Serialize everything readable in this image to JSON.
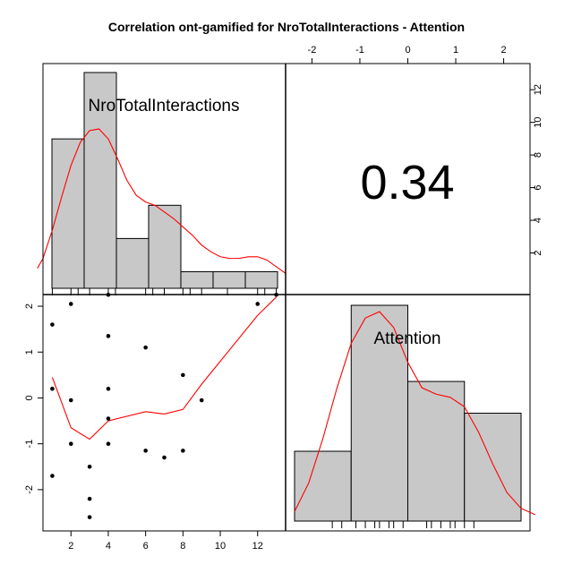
{
  "chart_data": {
    "type": "scatter",
    "title": "Correlation ont-gamified for NroTotalInteractions - Attention",
    "variables": [
      "NroTotalInteractions",
      "Attention"
    ],
    "correlation": {
      "value": 0.34,
      "label": "0.34"
    },
    "histograms": [
      {
        "variable": "NroTotalInteractions",
        "breaks": [
          1,
          2.714,
          4.429,
          6.143,
          7.857,
          9.571,
          11.286,
          13
        ],
        "counts": [
          9,
          13,
          3,
          5,
          1,
          1,
          1
        ],
        "rug": [
          1,
          2,
          3,
          4,
          6,
          7,
          8,
          9,
          12,
          13
        ],
        "density": [
          [
            0.2,
            1.2
          ],
          [
            0.5,
            1.8
          ],
          [
            1,
            3.5
          ],
          [
            1.5,
            5.5
          ],
          [
            2,
            7.4
          ],
          [
            2.5,
            8.8
          ],
          [
            3,
            9.5
          ],
          [
            3.5,
            9.6
          ],
          [
            4,
            9.0
          ],
          [
            4.5,
            7.8
          ],
          [
            5,
            6.5
          ],
          [
            5.5,
            5.6
          ],
          [
            6,
            5.2
          ],
          [
            6.5,
            5.0
          ],
          [
            7,
            4.6
          ],
          [
            7.5,
            4.2
          ],
          [
            8,
            3.7
          ],
          [
            8.5,
            3.2
          ],
          [
            9,
            2.6
          ],
          [
            9.5,
            2.2
          ],
          [
            10,
            1.9
          ],
          [
            10.5,
            1.8
          ],
          [
            11,
            1.8
          ],
          [
            11.5,
            1.9
          ],
          [
            12,
            1.9
          ],
          [
            12.5,
            1.7
          ],
          [
            13,
            1.3
          ],
          [
            13.5,
            0.9
          ]
        ],
        "tick_marks": [
          2,
          4,
          6,
          8,
          10,
          12
        ]
      },
      {
        "variable": "Attention",
        "breaks": [
          -2.6,
          -1.4,
          -0.2,
          1.0,
          2.2
        ],
        "counts": [
          2.2,
          6.8,
          4.4,
          3.4
        ],
        "rug": [
          -1.8,
          -1.6,
          -1.3,
          -1.1,
          -0.9,
          -0.8,
          -0.6,
          -0.5,
          -0.3,
          0.2,
          0.3,
          0.5,
          0.7,
          0.8,
          1.0,
          1.2
        ],
        "density": [
          [
            -2.6,
            0.3
          ],
          [
            -2.3,
            1.2
          ],
          [
            -2.0,
            2.6
          ],
          [
            -1.7,
            4.2
          ],
          [
            -1.4,
            5.6
          ],
          [
            -1.1,
            6.4
          ],
          [
            -0.8,
            6.6
          ],
          [
            -0.5,
            6.1
          ],
          [
            -0.2,
            5.0
          ],
          [
            0.1,
            4.2
          ],
          [
            0.4,
            4.0
          ],
          [
            0.7,
            3.9
          ],
          [
            1.0,
            3.6
          ],
          [
            1.3,
            2.8
          ],
          [
            1.6,
            1.8
          ],
          [
            1.9,
            0.9
          ],
          [
            2.2,
            0.4
          ],
          [
            2.5,
            0.2
          ]
        ]
      }
    ],
    "scatter": {
      "xlabel": "NroTotalInteractions",
      "ylabel": "Attention",
      "points": [
        {
          "x": 1,
          "y": 1.6
        },
        {
          "x": 1,
          "y": 0.2
        },
        {
          "x": 1,
          "y": -1.7
        },
        {
          "x": 2,
          "y": 2.05
        },
        {
          "x": 2,
          "y": -0.05
        },
        {
          "x": 2,
          "y": -1.0
        },
        {
          "x": 3,
          "y": -1.5
        },
        {
          "x": 3,
          "y": -2.2
        },
        {
          "x": 3,
          "y": -2.6
        },
        {
          "x": 4,
          "y": 2.25
        },
        {
          "x": 4,
          "y": 1.35
        },
        {
          "x": 4,
          "y": 0.2
        },
        {
          "x": 4,
          "y": -0.45
        },
        {
          "x": 4,
          "y": -1.0
        },
        {
          "x": 6,
          "y": 1.1
        },
        {
          "x": 6,
          "y": -1.15
        },
        {
          "x": 7,
          "y": -1.3
        },
        {
          "x": 8,
          "y": 0.5
        },
        {
          "x": 8,
          "y": -1.15
        },
        {
          "x": 9,
          "y": -0.05
        },
        {
          "x": 12,
          "y": 2.05
        },
        {
          "x": 13,
          "y": 2.25
        }
      ],
      "smooth": [
        [
          1,
          0.45
        ],
        [
          1.5,
          -0.1
        ],
        [
          2,
          -0.65
        ],
        [
          3,
          -0.9
        ],
        [
          4,
          -0.5
        ],
        [
          6,
          -0.3
        ],
        [
          7,
          -0.35
        ],
        [
          8,
          -0.25
        ],
        [
          9,
          0.3
        ],
        [
          10,
          0.8
        ],
        [
          12,
          1.8
        ],
        [
          13,
          2.2
        ]
      ]
    },
    "axes": {
      "x_bottom": {
        "ticks": [
          2,
          4,
          6,
          8,
          10,
          12
        ],
        "range": [
          0.5,
          13.5
        ]
      },
      "y_left": {
        "ticks": [
          2,
          1,
          0,
          -1,
          -2
        ],
        "range": [
          -2.9,
          2.45
        ]
      },
      "x_top": {
        "ticks": [
          -2,
          -1,
          0,
          1,
          2
        ],
        "range": [
          -2.55,
          2.55
        ]
      },
      "y_right": {
        "ticks": [
          2,
          4,
          6,
          8,
          10,
          12
        ],
        "range": [
          0,
          13.6
        ]
      }
    },
    "colors": {
      "bar_fill": "#c8c8c8",
      "density": "#ff0000",
      "points": "#000000",
      "frame": "#000000"
    },
    "grid": false
  }
}
